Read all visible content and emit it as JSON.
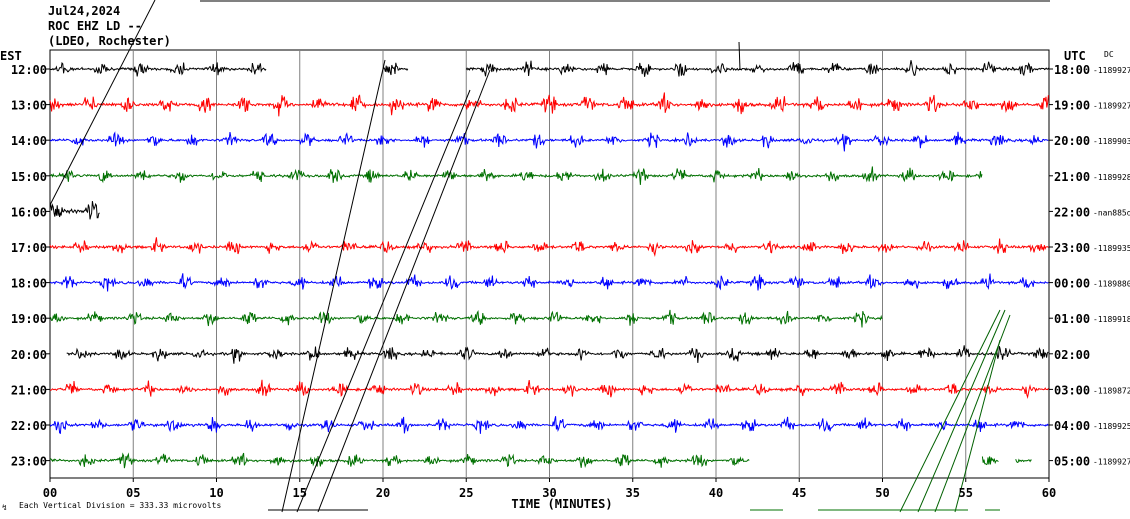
{
  "header": {
    "date": "Jul24,2024",
    "station": "ROC EHZ LD --",
    "network": "(LDEO, Rochester)"
  },
  "left_timezone": "EST",
  "right_timezone": "UTC",
  "dc_label": "DC",
  "footer": {
    "scale_text": "Each Vertical Division =  333.33 microvolts",
    "scale_symbol": "↯"
  },
  "chart_data": {
    "type": "line",
    "title": "Jul24,2024",
    "xlabel": "TIME (MINUTES)",
    "ylabel": "",
    "xlim": [
      0,
      60
    ],
    "x_ticks": [
      "00",
      "05",
      "10",
      "15",
      "20",
      "25",
      "30",
      "35",
      "40",
      "45",
      "50",
      "55",
      "60"
    ],
    "grid": true,
    "colors": [
      "#000000",
      "#ff0000",
      "#0000ff",
      "#007000"
    ],
    "rows": [
      {
        "est": "12:00",
        "utc": "18:00",
        "dc": "-1189927",
        "color": "#000000",
        "amp": 1.0,
        "segments": [
          [
            0,
            13
          ],
          [
            20,
            21.5
          ],
          [
            25,
            60
          ]
        ]
      },
      {
        "est": "13:00",
        "utc": "19:00",
        "dc": "-1189927",
        "color": "#ff0000",
        "amp": 1.3,
        "segments": [
          [
            0,
            60
          ]
        ]
      },
      {
        "est": "14:00",
        "utc": "20:00",
        "dc": "-1189903",
        "color": "#0000ff",
        "amp": 1.0,
        "segments": [
          [
            0,
            60
          ]
        ]
      },
      {
        "est": "15:00",
        "utc": "21:00",
        "dc": "-1189928",
        "color": "#007000",
        "amp": 1.0,
        "segments": [
          [
            0,
            56
          ]
        ]
      },
      {
        "est": "16:00",
        "utc": "22:00",
        "dc": "-nan885d",
        "color": "#000000",
        "amp": 1.6,
        "segments": [
          [
            0,
            3
          ]
        ]
      },
      {
        "est": "17:00",
        "utc": "23:00",
        "dc": "-1189935",
        "color": "#ff0000",
        "amp": 1.0,
        "segments": [
          [
            0,
            60
          ]
        ]
      },
      {
        "est": "18:00",
        "utc": "00:00",
        "dc": "-1189880",
        "color": "#0000ff",
        "amp": 1.0,
        "segments": [
          [
            0,
            60
          ]
        ]
      },
      {
        "est": "19:00",
        "utc": "01:00",
        "dc": "-1189918",
        "color": "#007000",
        "amp": 1.0,
        "segments": [
          [
            0,
            50
          ]
        ]
      },
      {
        "est": "20:00",
        "utc": "02:00",
        "dc": "",
        "color": "#000000",
        "amp": 1.0,
        "segments": [
          [
            1,
            60
          ]
        ]
      },
      {
        "est": "21:00",
        "utc": "03:00",
        "dc": "-1189872",
        "color": "#ff0000",
        "amp": 1.0,
        "segments": [
          [
            0,
            60
          ]
        ]
      },
      {
        "est": "22:00",
        "utc": "04:00",
        "dc": "-1189925",
        "color": "#0000ff",
        "amp": 1.0,
        "segments": [
          [
            0,
            60
          ]
        ]
      },
      {
        "est": "23:00",
        "utc": "05:00",
        "dc": "-1189927",
        "color": "#007000",
        "amp": 1.0,
        "segments": [
          [
            0,
            42
          ],
          [
            56,
            57
          ],
          [
            58,
            59
          ]
        ]
      }
    ]
  }
}
